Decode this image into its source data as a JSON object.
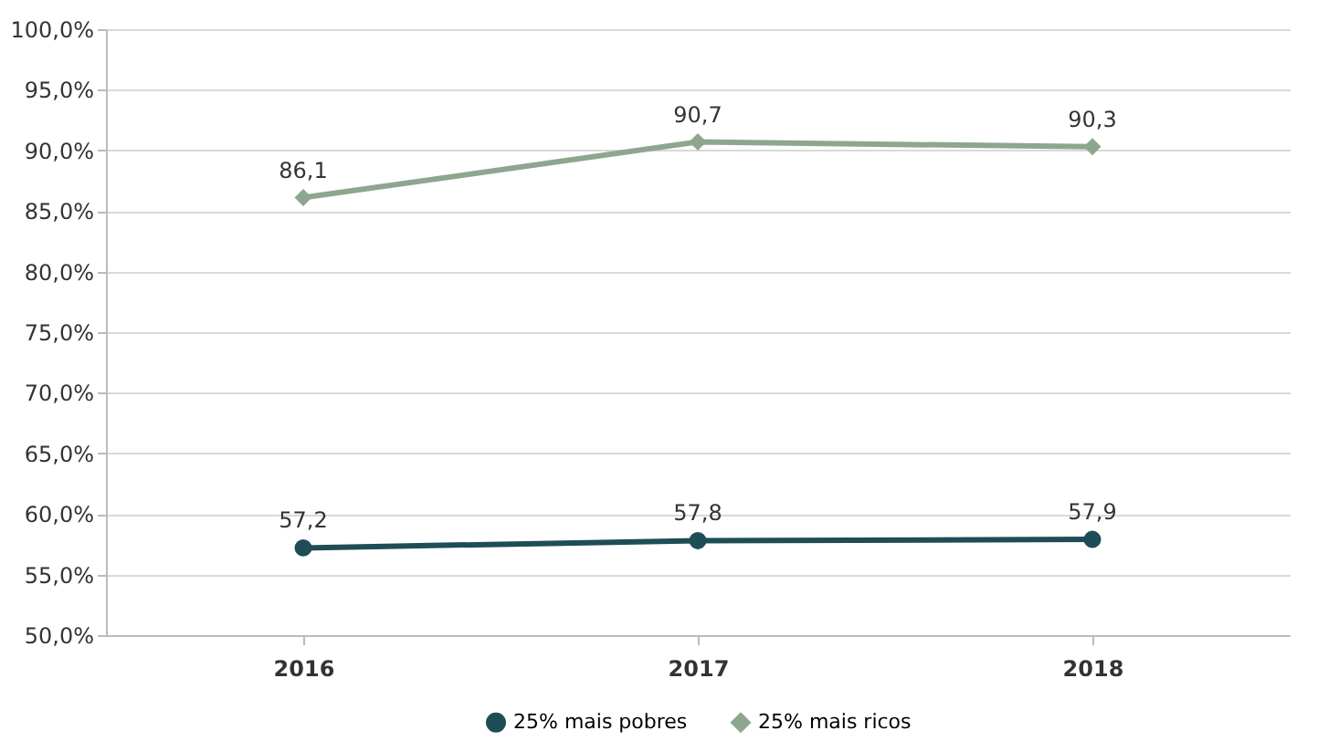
{
  "chart_data": {
    "type": "line",
    "categories": [
      "2016",
      "2017",
      "2018"
    ],
    "series": [
      {
        "name": "25% mais pobres",
        "color": "#1e4d57",
        "marker": "circle",
        "values": [
          57.2,
          57.8,
          57.9
        ],
        "value_labels": [
          "57,2",
          "57,8",
          "57,9"
        ]
      },
      {
        "name": "25% mais ricos",
        "color": "#8fa68e",
        "marker": "diamond",
        "values": [
          86.1,
          90.7,
          90.3
        ],
        "value_labels": [
          "86,1",
          "90,7",
          "90,3"
        ]
      }
    ],
    "ylim": [
      50,
      100
    ],
    "yticks": [
      {
        "value": 50,
        "label": "50,0%"
      },
      {
        "value": 55,
        "label": "55,0%"
      },
      {
        "value": 60,
        "label": "60,0%"
      },
      {
        "value": 65,
        "label": "65,0%"
      },
      {
        "value": 70,
        "label": "70,0%"
      },
      {
        "value": 75,
        "label": "75,0%"
      },
      {
        "value": 80,
        "label": "80,0%"
      },
      {
        "value": 85,
        "label": "85,0%"
      },
      {
        "value": 90,
        "label": "90,0%"
      },
      {
        "value": 95,
        "label": "95,0%"
      },
      {
        "value": 100,
        "label": "100,0%"
      }
    ],
    "grid": "y",
    "legend": "bottom",
    "line_style": "solid"
  }
}
